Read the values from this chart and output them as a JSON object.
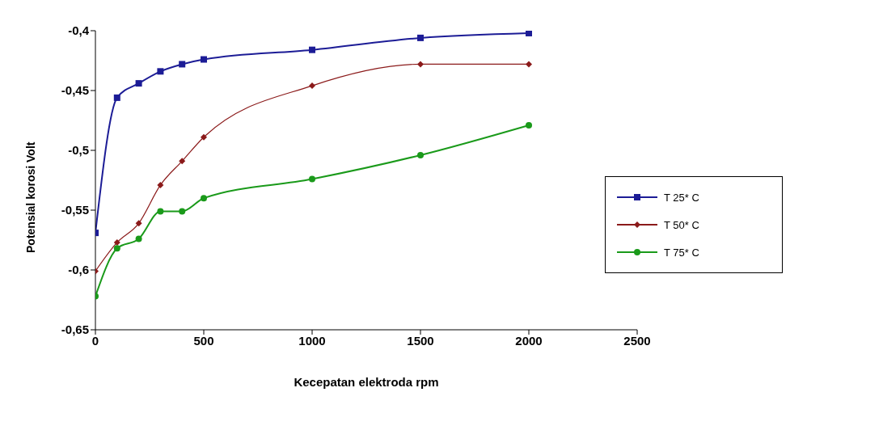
{
  "chart_data": {
    "type": "line",
    "xlabel": "Kecepatan  elektroda rpm",
    "ylabel": "Potensial korosi  Volt",
    "xlim": [
      0,
      2500
    ],
    "xticks": [
      0,
      500,
      1000,
      1500,
      2000,
      2500
    ],
    "ylim": [
      -0.65,
      -0.4
    ],
    "yticks": [
      {
        "value": -0.65,
        "label": "-0,65"
      },
      {
        "value": -0.6,
        "label": "-0,6"
      },
      {
        "value": -0.55,
        "label": "-0,55"
      },
      {
        "value": -0.5,
        "label": "-0,5"
      },
      {
        "value": -0.45,
        "label": "-0,45"
      },
      {
        "value": -0.4,
        "label": "-0,4"
      }
    ],
    "x": [
      0,
      100,
      200,
      300,
      400,
      500,
      1000,
      1500,
      2000
    ],
    "grid": false,
    "legend": "right",
    "series": [
      {
        "name": "T 25* C",
        "color": "#1c1c96",
        "marker": "square",
        "values": [
          -0.569,
          -0.456,
          -0.444,
          -0.434,
          -0.428,
          -0.424,
          -0.416,
          -0.406,
          -0.402
        ]
      },
      {
        "name": "T 50* C",
        "color": "#8b1a1a",
        "marker": "diamond",
        "values": [
          -0.601,
          -0.577,
          -0.561,
          -0.529,
          -0.509,
          -0.489,
          -0.446,
          -0.428,
          -0.428
        ]
      },
      {
        "name": "T 75* C",
        "color": "#1a9a1a",
        "marker": "circle",
        "values": [
          -0.622,
          -0.582,
          -0.574,
          -0.551,
          -0.551,
          -0.54,
          -0.524,
          -0.504,
          -0.479
        ]
      }
    ]
  }
}
